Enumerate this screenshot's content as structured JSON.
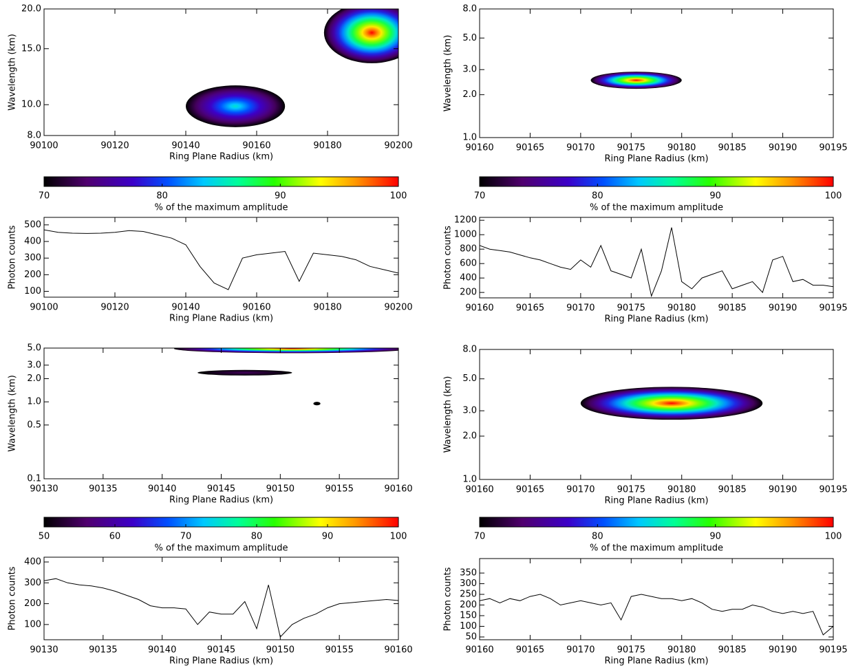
{
  "chart_data": [
    {
      "type": "contour",
      "ylabel": "Wavelength (km)",
      "xlabel": "Ring Plane Radius (km)",
      "log_y": true,
      "xlim": [
        90100,
        90200
      ],
      "xticks": [
        90100,
        90120,
        90140,
        90160,
        90180,
        90200
      ],
      "ylim": [
        8,
        20
      ],
      "yticks": [
        {
          "value": 8,
          "label": "8.0"
        },
        {
          "value": 10,
          "label": "10.0"
        },
        {
          "value": 15,
          "label": "15.0"
        },
        {
          "value": 20,
          "label": "20.0"
        }
      ],
      "regions": [
        {
          "x": [
            90140,
            90168
          ],
          "y": [
            8.5,
            11.5
          ],
          "peak": 85
        },
        {
          "x": [
            90179,
            90206
          ],
          "y": [
            13.5,
            21
          ],
          "peak": 100
        }
      ],
      "clim": [
        70,
        100
      ],
      "cticks": [
        70,
        80,
        90,
        100
      ],
      "colorbar_label": "% of the maximum amplitude"
    },
    {
      "type": "line",
      "ylabel": "Photon counts",
      "xlabel": "Ring Plane Radius (km)",
      "xlim": [
        90100,
        90200
      ],
      "xticks": [
        90100,
        90120,
        90140,
        90160,
        90180,
        90200
      ],
      "ylim": [
        65,
        545
      ],
      "yticks": [
        100,
        200,
        300,
        400,
        500
      ],
      "color": "#000000",
      "x": [
        90100,
        90104,
        90108,
        90112,
        90116,
        90120,
        90124,
        90128,
        90132,
        90136,
        90140,
        90144,
        90148,
        90152,
        90156,
        90160,
        90164,
        90168,
        90172,
        90176,
        90180,
        90184,
        90188,
        90192,
        90196,
        90200
      ],
      "values": [
        470,
        455,
        450,
        448,
        450,
        455,
        465,
        460,
        440,
        420,
        380,
        250,
        150,
        110,
        300,
        320,
        330,
        340,
        160,
        330,
        320,
        310,
        290,
        250,
        230,
        210
      ]
    },
    {
      "type": "contour",
      "ylabel": "Wavelength (km)",
      "xlabel": "Ring Plane Radius (km)",
      "log_y": true,
      "xlim": [
        90160,
        90195
      ],
      "xticks": [
        90160,
        90165,
        90170,
        90175,
        90180,
        90185,
        90190,
        90195
      ],
      "ylim": [
        1,
        8
      ],
      "yticks": [
        {
          "value": 1,
          "label": "1.0"
        },
        {
          "value": 2,
          "label": "2.0"
        },
        {
          "value": 3,
          "label": "3.0"
        },
        {
          "value": 5,
          "label": "5.0"
        },
        {
          "value": 8,
          "label": "8.0"
        }
      ],
      "regions": [
        {
          "x": [
            90171,
            90180
          ],
          "y": [
            2.2,
            2.9
          ],
          "peak": 100
        }
      ],
      "clim": [
        70,
        100
      ],
      "cticks": [
        70,
        80,
        90,
        100
      ],
      "colorbar_label": "% of the maximum amplitude"
    },
    {
      "type": "line",
      "ylabel": "Photon counts",
      "xlabel": "Ring Plane Radius (km)",
      "xlim": [
        90160,
        90195
      ],
      "xticks": [
        90160,
        90165,
        90170,
        90175,
        90180,
        90185,
        90190,
        90195
      ],
      "ylim": [
        125,
        1240
      ],
      "yticks": [
        200,
        400,
        600,
        800,
        1000,
        1200
      ],
      "color": "#000000",
      "x": [
        90160,
        90161,
        90162,
        90163,
        90164,
        90165,
        90166,
        90167,
        90168,
        90169,
        90170,
        90171,
        90172,
        90173,
        90174,
        90175,
        90176,
        90177,
        90178,
        90179,
        90180,
        90181,
        90182,
        90183,
        90184,
        90185,
        90186,
        90187,
        90188,
        90189,
        90190,
        90191,
        90192,
        90193,
        90194,
        90195
      ],
      "values": [
        850,
        800,
        780,
        760,
        720,
        680,
        650,
        600,
        550,
        520,
        650,
        550,
        850,
        500,
        450,
        400,
        800,
        150,
        500,
        1100,
        350,
        250,
        400,
        450,
        500,
        250,
        300,
        350,
        200,
        650,
        700,
        350,
        380,
        300,
        300,
        280
      ]
    },
    {
      "type": "contour",
      "ylabel": "Wavelength (km)",
      "xlabel": "Ring Plane Radius (km)",
      "log_y": true,
      "xlim": [
        90130,
        90160
      ],
      "xticks": [
        90130,
        90135,
        90140,
        90145,
        90150,
        90155,
        90160
      ],
      "ylim": [
        0.1,
        5
      ],
      "yticks": [
        {
          "value": 0.1,
          "label": "0.1"
        },
        {
          "value": 0.5,
          "label": "0.5"
        },
        {
          "value": 1,
          "label": "1.0"
        },
        {
          "value": 2,
          "label": "2.0"
        },
        {
          "value": 3,
          "label": "3.0"
        },
        {
          "value": 5,
          "label": "5.0"
        }
      ],
      "regions": [
        {
          "x": [
            90141,
            90161
          ],
          "y": [
            4.3,
            5.6
          ],
          "peak": 100
        },
        {
          "x": [
            90143,
            90151
          ],
          "y": [
            2.2,
            2.6
          ],
          "peak": 55
        },
        {
          "x": [
            90152.8,
            90153.4
          ],
          "y": [
            0.9,
            1.0
          ],
          "peak": 50
        }
      ],
      "clim": [
        50,
        100
      ],
      "cticks": [
        50,
        60,
        70,
        80,
        90,
        100
      ],
      "colorbar_label": "% of the maximum amplitude"
    },
    {
      "type": "line",
      "ylabel": "Photon counts",
      "xlabel": "Ring Plane Radius (km)",
      "xlim": [
        90130,
        90160
      ],
      "xticks": [
        90130,
        90135,
        90140,
        90145,
        90150,
        90155,
        90160
      ],
      "ylim": [
        27,
        423
      ],
      "yticks": [
        100,
        200,
        300,
        400
      ],
      "color": "#000000",
      "x": [
        90130,
        90131,
        90132,
        90133,
        90134,
        90135,
        90136,
        90137,
        90138,
        90139,
        90140,
        90141,
        90142,
        90143,
        90144,
        90145,
        90146,
        90147,
        90148,
        90149,
        90150,
        90151,
        90152,
        90153,
        90154,
        90155,
        90156,
        90157,
        90158,
        90159,
        90160
      ],
      "values": [
        310,
        320,
        300,
        290,
        285,
        275,
        260,
        240,
        220,
        190,
        180,
        180,
        175,
        100,
        160,
        150,
        150,
        210,
        80,
        290,
        40,
        100,
        130,
        150,
        180,
        200,
        205,
        210,
        215,
        220,
        215
      ]
    },
    {
      "type": "contour",
      "ylabel": "Wavelength (km)",
      "xlabel": "Ring Plane Radius (km)",
      "log_y": true,
      "xlim": [
        90160,
        90195
      ],
      "xticks": [
        90160,
        90165,
        90170,
        90175,
        90180,
        90185,
        90190,
        90195
      ],
      "ylim": [
        1,
        8
      ],
      "yticks": [
        {
          "value": 1,
          "label": "1.0"
        },
        {
          "value": 2,
          "label": "2.0"
        },
        {
          "value": 3,
          "label": "3.0"
        },
        {
          "value": 5,
          "label": "5.0"
        },
        {
          "value": 8,
          "label": "8.0"
        }
      ],
      "regions": [
        {
          "x": [
            90170,
            90188
          ],
          "y": [
            2.6,
            4.4
          ],
          "peak": 100
        }
      ],
      "clim": [
        70,
        100
      ],
      "cticks": [
        70,
        80,
        90,
        100
      ],
      "colorbar_label": "% of the maximum amplitude"
    },
    {
      "type": "line",
      "ylabel": "Photon counts",
      "xlabel": "Ring Plane Radius (km)",
      "xlim": [
        90160,
        90195
      ],
      "xticks": [
        90160,
        90165,
        90170,
        90175,
        90180,
        90185,
        90190,
        90195
      ],
      "ylim": [
        37,
        418
      ],
      "yticks": [
        50,
        100,
        150,
        200,
        250,
        300,
        350
      ],
      "color": "#000000",
      "x": [
        90160,
        90161,
        90162,
        90163,
        90164,
        90165,
        90166,
        90167,
        90168,
        90169,
        90170,
        90171,
        90172,
        90173,
        90174,
        90175,
        90176,
        90177,
        90178,
        90179,
        90180,
        90181,
        90182,
        90183,
        90184,
        90185,
        90186,
        90187,
        90188,
        90189,
        90190,
        90191,
        90192,
        90193,
        90194,
        90195
      ],
      "values": [
        220,
        230,
        210,
        230,
        220,
        240,
        250,
        230,
        200,
        210,
        220,
        210,
        200,
        210,
        130,
        240,
        250,
        240,
        230,
        230,
        220,
        230,
        210,
        180,
        170,
        180,
        180,
        200,
        190,
        170,
        160,
        170,
        160,
        170,
        60,
        100
      ]
    }
  ]
}
